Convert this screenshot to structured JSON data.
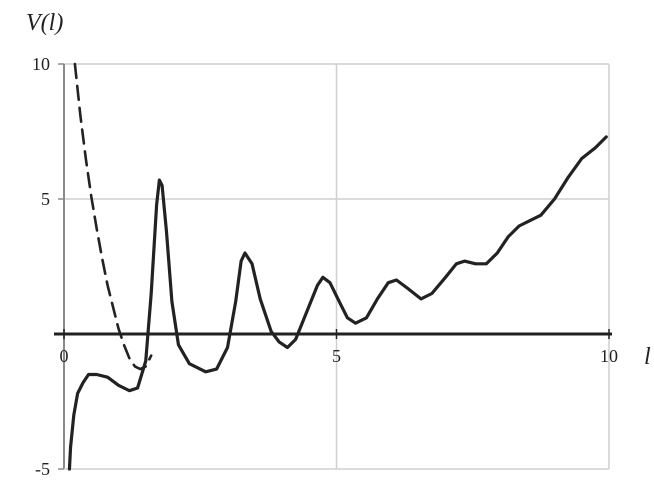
{
  "chart_data": {
    "type": "line",
    "title": "",
    "xlabel": "l",
    "ylabel": "V(l)",
    "xlim": [
      0,
      10
    ],
    "ylim": [
      -5,
      10
    ],
    "grid": true,
    "x_ticks": [
      0,
      5,
      10
    ],
    "y_ticks": [
      -5,
      5,
      10
    ],
    "x_tick_labels": [
      "0",
      "5",
      "10"
    ],
    "y_tick_labels": [
      "-5",
      "5",
      "10"
    ],
    "series": [
      {
        "style": "solid",
        "color": "#222222",
        "points": [
          [
            0.1,
            -5.0
          ],
          [
            0.12,
            -4.2
          ],
          [
            0.18,
            -3.0
          ],
          [
            0.25,
            -2.2
          ],
          [
            0.35,
            -1.8
          ],
          [
            0.45,
            -1.5
          ],
          [
            0.6,
            -1.5
          ],
          [
            0.8,
            -1.6
          ],
          [
            1.0,
            -1.9
          ],
          [
            1.2,
            -2.1
          ],
          [
            1.35,
            -2.0
          ],
          [
            1.5,
            -1.0
          ],
          [
            1.6,
            1.5
          ],
          [
            1.7,
            4.8
          ],
          [
            1.75,
            5.7
          ],
          [
            1.8,
            5.5
          ],
          [
            1.88,
            3.8
          ],
          [
            1.98,
            1.2
          ],
          [
            2.1,
            -0.4
          ],
          [
            2.3,
            -1.1
          ],
          [
            2.6,
            -1.4
          ],
          [
            2.8,
            -1.3
          ],
          [
            3.0,
            -0.5
          ],
          [
            3.15,
            1.2
          ],
          [
            3.25,
            2.7
          ],
          [
            3.32,
            3.0
          ],
          [
            3.45,
            2.6
          ],
          [
            3.6,
            1.3
          ],
          [
            3.8,
            0.1
          ],
          [
            3.95,
            -0.3
          ],
          [
            4.1,
            -0.5
          ],
          [
            4.25,
            -0.2
          ],
          [
            4.45,
            0.8
          ],
          [
            4.65,
            1.8
          ],
          [
            4.75,
            2.1
          ],
          [
            4.88,
            1.9
          ],
          [
            5.05,
            1.2
          ],
          [
            5.2,
            0.6
          ],
          [
            5.35,
            0.4
          ],
          [
            5.55,
            0.6
          ],
          [
            5.75,
            1.3
          ],
          [
            5.95,
            1.9
          ],
          [
            6.1,
            2.0
          ],
          [
            6.3,
            1.7
          ],
          [
            6.55,
            1.3
          ],
          [
            6.75,
            1.5
          ],
          [
            7.0,
            2.1
          ],
          [
            7.2,
            2.6
          ],
          [
            7.35,
            2.7
          ],
          [
            7.55,
            2.6
          ],
          [
            7.75,
            2.6
          ],
          [
            7.95,
            3.0
          ],
          [
            8.15,
            3.6
          ],
          [
            8.35,
            4.0
          ],
          [
            8.55,
            4.2
          ],
          [
            8.75,
            4.4
          ],
          [
            9.0,
            5.0
          ],
          [
            9.25,
            5.8
          ],
          [
            9.5,
            6.5
          ],
          [
            9.75,
            6.9
          ],
          [
            9.95,
            7.3
          ]
        ]
      },
      {
        "style": "dashed",
        "color": "#222222",
        "points": [
          [
            0.2,
            10.0
          ],
          [
            0.3,
            8.1
          ],
          [
            0.4,
            6.5
          ],
          [
            0.5,
            5.1
          ],
          [
            0.6,
            3.9
          ],
          [
            0.7,
            2.8
          ],
          [
            0.8,
            1.8
          ],
          [
            0.9,
            1.0
          ],
          [
            1.0,
            0.2
          ],
          [
            1.1,
            -0.4
          ],
          [
            1.2,
            -0.9
          ],
          [
            1.3,
            -1.2
          ],
          [
            1.4,
            -1.3
          ],
          [
            1.5,
            -1.2
          ],
          [
            1.6,
            -0.8
          ]
        ]
      }
    ]
  }
}
